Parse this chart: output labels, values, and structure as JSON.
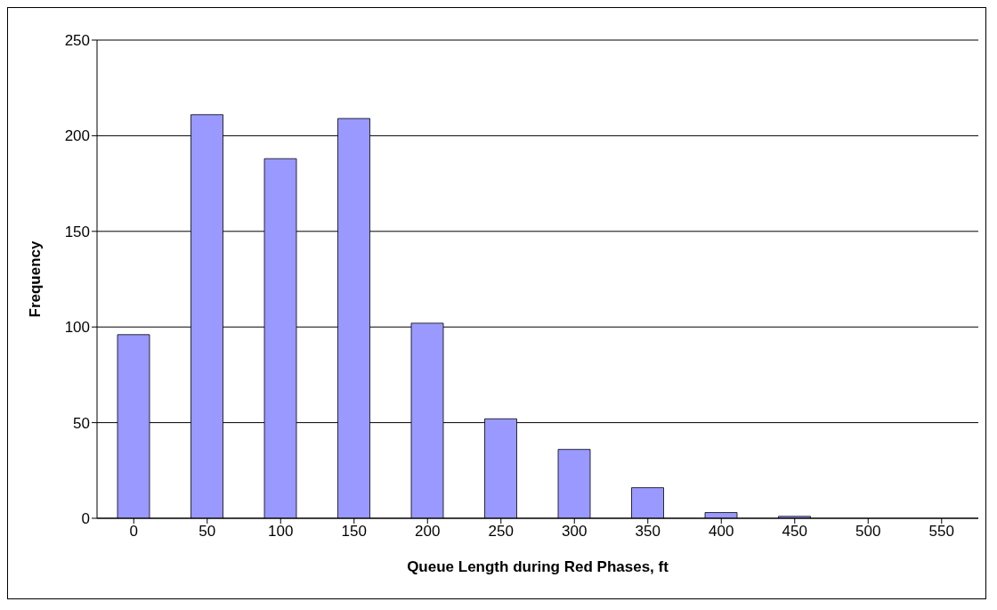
{
  "chart_data": {
    "type": "bar",
    "xlabel": "Queue Length during Red Phases, ft",
    "ylabel": "Frequency",
    "categories": [
      "0",
      "50",
      "100",
      "150",
      "200",
      "250",
      "300",
      "350",
      "400",
      "450",
      "500",
      "550"
    ],
    "values": [
      96,
      211,
      188,
      209,
      102,
      52,
      36,
      16,
      3,
      1,
      0,
      0
    ],
    "color": "#9999ff",
    "ylim": [
      0,
      250
    ],
    "yticks": [
      0,
      50,
      100,
      150,
      200,
      250
    ],
    "grid": "y",
    "legend": false
  }
}
